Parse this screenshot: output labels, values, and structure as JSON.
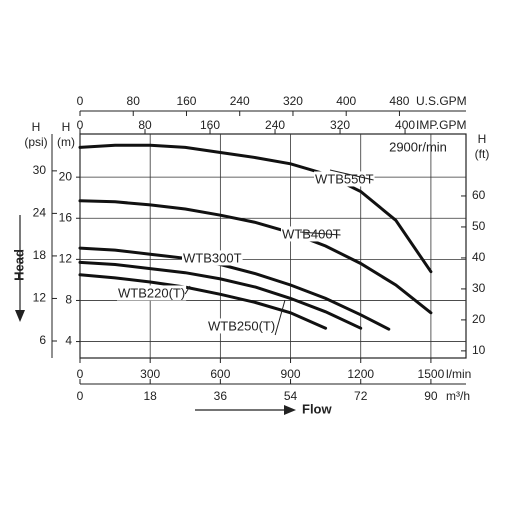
{
  "chart_data": {
    "type": "line",
    "speed": "2900r/min",
    "head_label": "Head",
    "flow_label": "Flow",
    "xlabel": "l/min",
    "xlim": [
      0,
      1650
    ],
    "xticks": [
      0,
      300,
      600,
      900,
      1200,
      1500
    ],
    "x2label": "m³/h",
    "x2lim": [
      0,
      99
    ],
    "x2ticks": [
      0,
      18,
      36,
      54,
      72,
      90
    ],
    "x3label": "U.S.GPM",
    "x3lim": [
      0,
      580
    ],
    "x3ticks": [
      0,
      80,
      160,
      240,
      320,
      400,
      480
    ],
    "x4label": "IMP.GPM",
    "x4lim": [
      0,
      475
    ],
    "x4ticks": [
      0,
      80,
      160,
      240,
      320,
      400
    ],
    "ylabel": {
      "symbol": "H",
      "unit": "(m)"
    },
    "ylim": [
      2.4,
      24.2
    ],
    "yticks": [
      4,
      8,
      12,
      16,
      20
    ],
    "y3label": {
      "symbol": "H",
      "unit": "(psi)"
    },
    "y3lim": [
      3.6,
      35.2
    ],
    "y3ticks": [
      6,
      12,
      18,
      24,
      30
    ],
    "y2label": {
      "symbol": "H",
      "unit": "(ft)"
    },
    "y2lim": [
      7.7,
      80
    ],
    "y2ticks": [
      10,
      20,
      30,
      40,
      50,
      60
    ],
    "grid": true,
    "series": [
      {
        "name": "WTB550T",
        "color": "#111111",
        "x": [
          0,
          150,
          300,
          450,
          600,
          750,
          900,
          1050,
          1200,
          1350,
          1500
        ],
        "values": [
          22.9,
          23.1,
          23.1,
          22.9,
          22.4,
          21.9,
          21.3,
          20.3,
          18.6,
          15.8,
          10.8
        ]
      },
      {
        "name": "WTB400T",
        "color": "#111111",
        "x": [
          0,
          150,
          300,
          450,
          600,
          750,
          900,
          1050,
          1200,
          1350,
          1500
        ],
        "values": [
          17.7,
          17.6,
          17.3,
          16.9,
          16.3,
          15.6,
          14.6,
          13.3,
          11.6,
          9.5,
          6.8
        ]
      },
      {
        "name": "WTB300T",
        "color": "#111111",
        "x": [
          0,
          150,
          300,
          450,
          600,
          750,
          900,
          1050,
          1200,
          1320
        ],
        "values": [
          13.1,
          12.9,
          12.5,
          12.1,
          11.5,
          10.6,
          9.5,
          8.2,
          6.6,
          5.2
        ]
      },
      {
        "name": "WTB250(T)",
        "color": "#111111",
        "x": [
          0,
          150,
          300,
          450,
          600,
          750,
          900,
          1050,
          1200
        ],
        "values": [
          11.7,
          11.5,
          11.1,
          10.7,
          10.1,
          9.3,
          8.2,
          6.9,
          5.3
        ]
      },
      {
        "name": "WTB220(T)",
        "color": "#111111",
        "x": [
          0,
          150,
          300,
          450,
          600,
          750,
          900,
          1050
        ],
        "values": [
          10.5,
          10.2,
          9.8,
          9.3,
          8.6,
          7.8,
          6.8,
          5.3
        ]
      }
    ]
  }
}
